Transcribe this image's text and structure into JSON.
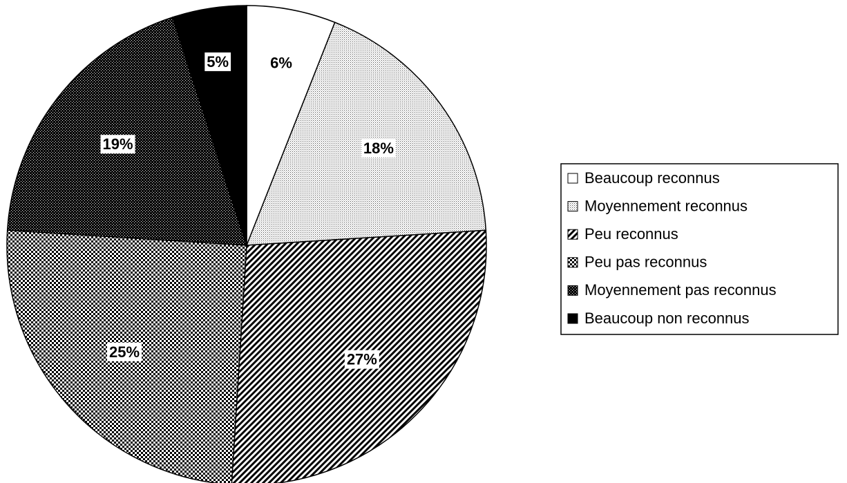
{
  "chart_data": {
    "type": "pie",
    "categories": [
      "Beaucoup reconnus",
      "Moyennement reconnus",
      "Peu reconnus",
      "Peu pas reconnus",
      "Moyennement pas reconnus",
      "Beaucoup non reconnus"
    ],
    "values": [
      6,
      18,
      27,
      25,
      19,
      5
    ],
    "value_labels": [
      "6%",
      "18%",
      "27%",
      "25%",
      "19%",
      "5%"
    ],
    "patterns": [
      "white",
      "dots",
      "diagonal",
      "checker",
      "dense-checker",
      "black"
    ],
    "legend": "right"
  }
}
